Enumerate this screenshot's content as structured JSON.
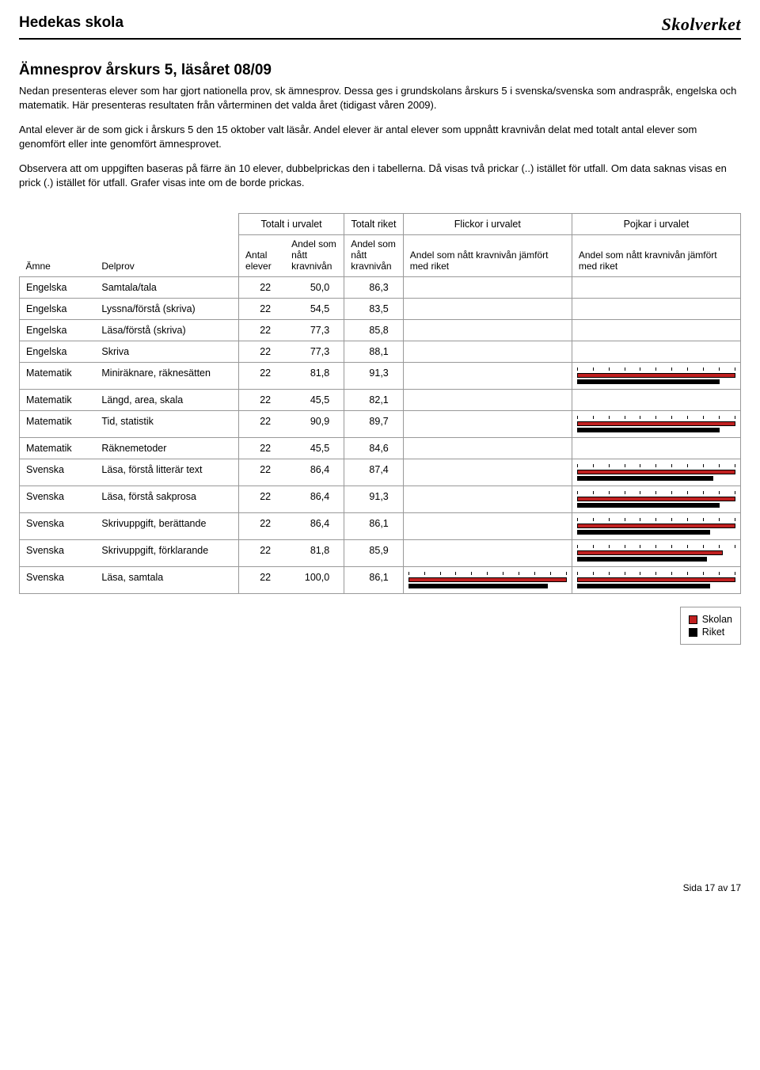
{
  "header": {
    "school_name": "Hedekas skola",
    "logo_text": "Skolverket"
  },
  "title": "Ämnesprov årskurs 5, läsåret 08/09",
  "intro": {
    "p1": "Nedan presenteras elever som har gjort nationella prov, sk ämnesprov. Dessa ges i grundskolans årskurs 5 i svenska/svenska som andraspråk, engelska och matematik. Här presenteras resultaten från vårterminen det valda året (tidigast våren 2009).",
    "p2": "Antal elever är de som gick i årskurs 5 den 15 oktober valt läsår. Andel elever är antal elever som uppnått kravnivån delat med totalt antal elever som genomfört eller inte genomfört ämnesprovet.",
    "p3": "Observera att om uppgiften baseras på färre än 10 elever, dubbelprickas den i tabellerna. Då visas två prickar (..) istället för utfall. Om data saknas visas en prick (.) istället för utfall. Grafer visas inte om de borde prickas."
  },
  "table": {
    "groups": {
      "totalt_urvalet": "Totalt i urvalet",
      "totalt_riket": "Totalt riket",
      "flickor": "Flickor i urvalet",
      "pojkar": "Pojkar i urvalet"
    },
    "headers": {
      "amne": "Ämne",
      "delprov": "Delprov",
      "antal_elever": "Antal elever",
      "andel_kravnivan": "Andel som nått kravnivån",
      "andel_kravnivan_riket": "Andel som nått kravnivån",
      "flickor_label": "Andel som nått kravnivån jämfört med riket",
      "pojkar_label": "Andel som nått kravnivån jämfört med riket"
    },
    "chart": {
      "colors": {
        "skolan": "#c02020",
        "riket": "#000000"
      },
      "max": 100,
      "ticks": 11
    },
    "rows": [
      {
        "amne": "Engelska",
        "delprov": "Samtala/tala",
        "antal": "22",
        "andel_urval": "50,0",
        "andel_riket": "86,3",
        "flickor": null,
        "pojkar": null
      },
      {
        "amne": "Engelska",
        "delprov": "Lyssna/förstå (skriva)",
        "antal": "22",
        "andel_urval": "54,5",
        "andel_riket": "83,5",
        "flickor": null,
        "pojkar": null
      },
      {
        "amne": "Engelska",
        "delprov": "Läsa/förstå (skriva)",
        "antal": "22",
        "andel_urval": "77,3",
        "andel_riket": "85,8",
        "flickor": null,
        "pojkar": null
      },
      {
        "amne": "Engelska",
        "delprov": "Skriva",
        "antal": "22",
        "andel_urval": "77,3",
        "andel_riket": "88,1",
        "flickor": null,
        "pojkar": null
      },
      {
        "amne": "Matematik",
        "delprov": "Miniräknare, räknesätten",
        "antal": "22",
        "andel_urval": "81,8",
        "andel_riket": "91,3",
        "flickor": null,
        "pojkar": {
          "skolan": 100,
          "riket": 90
        }
      },
      {
        "amne": "Matematik",
        "delprov": "Längd, area, skala",
        "antal": "22",
        "andel_urval": "45,5",
        "andel_riket": "82,1",
        "flickor": null,
        "pojkar": null
      },
      {
        "amne": "Matematik",
        "delprov": "Tid, statistik",
        "antal": "22",
        "andel_urval": "90,9",
        "andel_riket": "89,7",
        "flickor": null,
        "pojkar": {
          "skolan": 100,
          "riket": 90
        }
      },
      {
        "amne": "Matematik",
        "delprov": "Räknemetoder",
        "antal": "22",
        "andel_urval": "45,5",
        "andel_riket": "84,6",
        "flickor": null,
        "pojkar": null
      },
      {
        "amne": "Svenska",
        "delprov": "Läsa, förstå litterär text",
        "antal": "22",
        "andel_urval": "86,4",
        "andel_riket": "87,4",
        "flickor": null,
        "pojkar": {
          "skolan": 100,
          "riket": 86
        }
      },
      {
        "amne": "Svenska",
        "delprov": "Läsa, förstå sakprosa",
        "antal": "22",
        "andel_urval": "86,4",
        "andel_riket": "91,3",
        "flickor": null,
        "pojkar": {
          "skolan": 100,
          "riket": 90
        }
      },
      {
        "amne": "Svenska",
        "delprov": "Skrivuppgift, berättande",
        "antal": "22",
        "andel_urval": "86,4",
        "andel_riket": "86,1",
        "flickor": null,
        "pojkar": {
          "skolan": 100,
          "riket": 84
        }
      },
      {
        "amne": "Svenska",
        "delprov": "Skrivuppgift, förklarande",
        "antal": "22",
        "andel_urval": "81,8",
        "andel_riket": "85,9",
        "flickor": null,
        "pojkar": {
          "skolan": 92,
          "riket": 82
        }
      },
      {
        "amne": "Svenska",
        "delprov": "Läsa, samtala",
        "antal": "22",
        "andel_urval": "100,0",
        "andel_riket": "86,1",
        "flickor": {
          "skolan": 100,
          "riket": 88
        },
        "pojkar": {
          "skolan": 100,
          "riket": 84
        }
      }
    ]
  },
  "legend": {
    "skolan": "Skolan",
    "riket": "Riket"
  },
  "footer": "Sida 17 av 17"
}
